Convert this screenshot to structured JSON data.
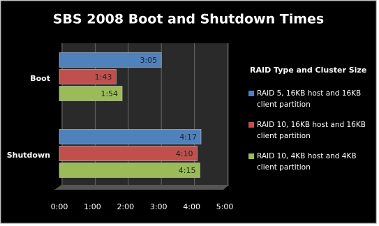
{
  "chart_data": {
    "type": "bar",
    "orientation": "horizontal",
    "title": "SBS 2008 Boot and Shutdown Times",
    "categories": [
      "Boot",
      "Shutdown"
    ],
    "legend_title": "RAID Type and Cluster Size",
    "series": [
      {
        "name": "RAID 5, 16KB host and 16KB client partition",
        "color": "#4f81bd",
        "values": [
          185,
          257
        ],
        "value_labels": [
          "3:05",
          "4:17"
        ]
      },
      {
        "name": "RAID 10, 16KB host and 16KB client partition",
        "color": "#c0504d",
        "values": [
          103,
          250
        ],
        "value_labels": [
          "1:43",
          "4:10"
        ]
      },
      {
        "name": "RAID 10, 4KB host and 4KB client partition",
        "color": "#9bbb59",
        "values": [
          114,
          255
        ],
        "value_labels": [
          "1:54",
          "4:15"
        ]
      }
    ],
    "xlim": [
      0,
      300
    ],
    "xticks": [
      {
        "value": 0,
        "label": "0:00"
      },
      {
        "value": 60,
        "label": "1:00"
      },
      {
        "value": 120,
        "label": "2:00"
      },
      {
        "value": 180,
        "label": "3:00"
      },
      {
        "value": 240,
        "label": "4:00"
      },
      {
        "value": 300,
        "label": "5:00"
      }
    ],
    "grid": true
  }
}
